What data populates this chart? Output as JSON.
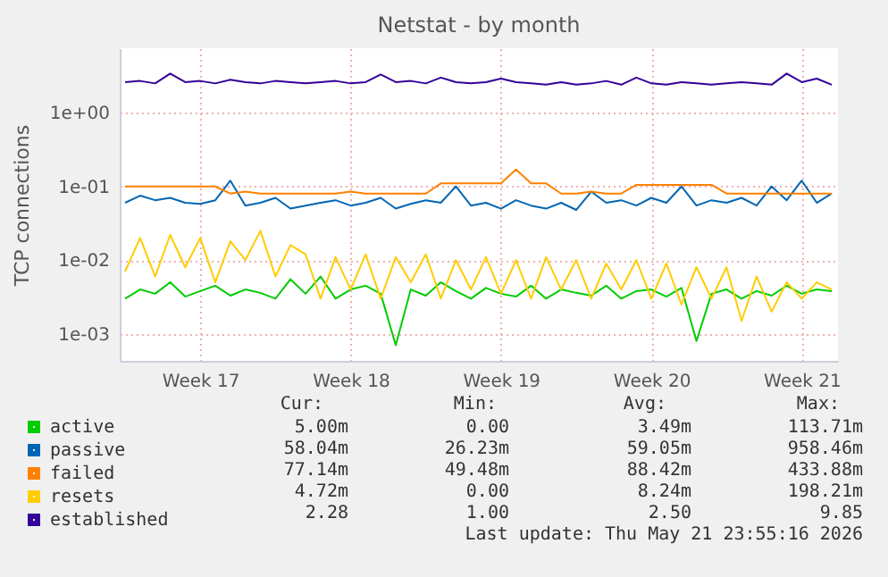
{
  "chart_data": {
    "type": "line",
    "title": "Netstat - by month",
    "ylabel": "TCP connections",
    "log": "y",
    "grid": true,
    "legend": "bottom left",
    "marker": "none",
    "line_style": "solid",
    "xlim": [
      "2026-04-19T18:00",
      "2026-05-23T04:30"
    ],
    "xticks": [
      {
        "value": "2026-04-23T12:00",
        "label": "Week 17"
      },
      {
        "value": "2026-04-30T12:00",
        "label": "Week 18"
      },
      {
        "value": "2026-05-07T12:00",
        "label": "Week 19"
      },
      {
        "value": "2026-05-14T12:00",
        "label": "Week 20"
      },
      {
        "value": "2026-05-21T12:00",
        "label": "Week 21"
      }
    ],
    "ylim": [
      0.00043,
      7.5
    ],
    "yticks": [
      {
        "value": 0.001,
        "label": "1e-03"
      },
      {
        "value": 0.01,
        "label": "1e-02"
      },
      {
        "value": 0.1,
        "label": "1e-01"
      },
      {
        "value": 1,
        "label": "1e+00"
      }
    ],
    "x": [
      "2026-04-20T00:00",
      "2026-04-20T16:48",
      "2026-04-21T09:36",
      "2026-04-22T02:24",
      "2026-04-22T19:12",
      "2026-04-23T12:00",
      "2026-04-24T04:48",
      "2026-04-24T21:36",
      "2026-04-25T14:24",
      "2026-04-26T07:12",
      "2026-04-27T00:00",
      "2026-04-27T16:48",
      "2026-04-28T09:36",
      "2026-04-29T02:24",
      "2026-04-29T19:12",
      "2026-04-30T12:00",
      "2026-05-01T04:48",
      "2026-05-01T21:36",
      "2026-05-02T14:24",
      "2026-05-03T07:12",
      "2026-05-04T00:00",
      "2026-05-04T16:48",
      "2026-05-05T09:36",
      "2026-05-06T02:24",
      "2026-05-06T19:12",
      "2026-05-07T12:00",
      "2026-05-08T04:48",
      "2026-05-08T21:36",
      "2026-05-09T14:24",
      "2026-05-10T07:12",
      "2026-05-11T00:00",
      "2026-05-11T16:48",
      "2026-05-12T09:36",
      "2026-05-13T02:24",
      "2026-05-13T19:12",
      "2026-05-14T12:00",
      "2026-05-15T04:48",
      "2026-05-15T21:36",
      "2026-05-16T14:24",
      "2026-05-17T07:12",
      "2026-05-18T00:00",
      "2026-05-18T16:48",
      "2026-05-19T09:36",
      "2026-05-20T02:24",
      "2026-05-20T19:12",
      "2026-05-21T12:00",
      "2026-05-22T04:48",
      "2026-05-22T21:36"
    ],
    "series": [
      {
        "name": "active",
        "color": "#00cc00",
        "values": [
          0.003,
          0.004,
          0.0035,
          0.005,
          0.0032,
          0.0038,
          0.0045,
          0.0033,
          0.004,
          0.0036,
          0.003,
          0.0055,
          0.0035,
          0.006,
          0.003,
          0.004,
          0.0045,
          0.0035,
          0.0007,
          0.004,
          0.0033,
          0.005,
          0.0038,
          0.003,
          0.0042,
          0.0035,
          0.0032,
          0.0045,
          0.003,
          0.004,
          0.0036,
          0.0033,
          0.0045,
          0.003,
          0.0038,
          0.004,
          0.0032,
          0.0042,
          0.0008,
          0.0035,
          0.004,
          0.003,
          0.0038,
          0.0033,
          0.0045,
          0.0035,
          0.004,
          0.0038
        ]
      },
      {
        "name": "passive",
        "color": "#0066b3",
        "values": [
          0.06,
          0.075,
          0.065,
          0.07,
          0.06,
          0.058,
          0.065,
          0.12,
          0.055,
          0.06,
          0.07,
          0.05,
          0.055,
          0.06,
          0.065,
          0.055,
          0.06,
          0.07,
          0.05,
          0.058,
          0.065,
          0.06,
          0.1,
          0.055,
          0.06,
          0.05,
          0.065,
          0.055,
          0.05,
          0.06,
          0.048,
          0.085,
          0.06,
          0.065,
          0.055,
          0.07,
          0.06,
          0.1,
          0.055,
          0.065,
          0.06,
          0.07,
          0.055,
          0.1,
          0.065,
          0.12,
          0.06,
          0.08
        ]
      },
      {
        "name": "failed",
        "color": "#ff8000",
        "values": [
          0.1,
          0.1,
          0.1,
          0.1,
          0.1,
          0.1,
          0.1,
          0.08,
          0.085,
          0.08,
          0.08,
          0.08,
          0.08,
          0.08,
          0.08,
          0.085,
          0.08,
          0.08,
          0.08,
          0.08,
          0.08,
          0.11,
          0.11,
          0.11,
          0.11,
          0.11,
          0.17,
          0.11,
          0.11,
          0.08,
          0.08,
          0.085,
          0.08,
          0.08,
          0.105,
          0.105,
          0.105,
          0.105,
          0.105,
          0.105,
          0.08,
          0.08,
          0.08,
          0.08,
          0.08,
          0.08,
          0.08,
          0.08
        ]
      },
      {
        "name": "resets",
        "color": "#ffcc00",
        "values": [
          0.007,
          0.02,
          0.006,
          0.022,
          0.008,
          0.02,
          0.005,
          0.018,
          0.01,
          0.025,
          0.006,
          0.016,
          0.012,
          0.003,
          0.011,
          0.004,
          0.012,
          0.003,
          0.011,
          0.005,
          0.012,
          0.003,
          0.01,
          0.004,
          0.011,
          0.0035,
          0.01,
          0.003,
          0.011,
          0.004,
          0.01,
          0.003,
          0.009,
          0.004,
          0.01,
          0.003,
          0.009,
          0.0025,
          0.008,
          0.003,
          0.008,
          0.0015,
          0.006,
          0.002,
          0.005,
          0.003,
          0.005,
          0.004
        ]
      },
      {
        "name": "established",
        "color": "#330099",
        "values": [
          2.6,
          2.7,
          2.5,
          3.4,
          2.6,
          2.7,
          2.5,
          2.8,
          2.6,
          2.5,
          2.7,
          2.6,
          2.5,
          2.6,
          2.7,
          2.5,
          2.6,
          3.3,
          2.6,
          2.7,
          2.5,
          3.0,
          2.6,
          2.5,
          2.6,
          2.9,
          2.6,
          2.5,
          2.4,
          2.6,
          2.4,
          2.5,
          2.7,
          2.4,
          3.0,
          2.5,
          2.4,
          2.6,
          2.5,
          2.4,
          2.5,
          2.6,
          2.5,
          2.4,
          3.4,
          2.6,
          2.9,
          2.4
        ]
      }
    ],
    "annotations": [
      "Cur:",
      "Min:",
      "Avg:",
      "Max:",
      "5.00m",
      "0.00",
      "3.49m",
      "113.71m",
      "58.04m",
      "26.23m",
      "59.05m",
      "958.46m",
      "77.14m",
      "49.48m",
      "88.42m",
      "433.88m",
      "4.72m",
      "0.00",
      "8.24m",
      "198.21m",
      "2.28",
      "1.00",
      "2.50",
      "9.85",
      "Last update: Thu May 21 23:55:16 2026"
    ]
  }
}
